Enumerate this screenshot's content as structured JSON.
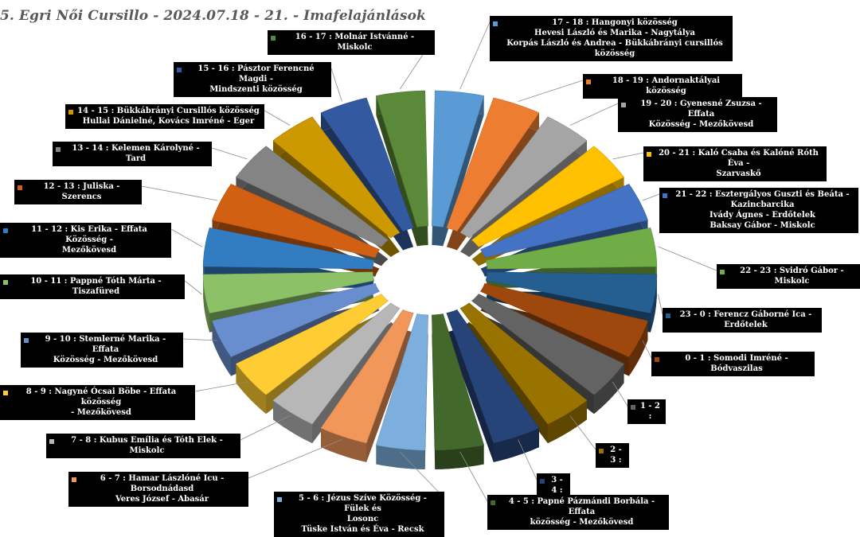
{
  "chart_data": {
    "type": "pie",
    "title": "5. Egri Női Cursillo - 2024.07.18 - 21. - Imafelajánlások",
    "categories": [
      "17 - 18 : Hangonyi közösség\nHevesi László és Marika - Nagytálya\nKorpás László és Andrea - Bükkábrányi cursillós közösség",
      "18 - 19 : Andornaktályai közösség",
      "19 - 20 : Gyenesné Zsuzsa - Effata\nKözösség - Mezőkövesd",
      "20 - 21 : Kaló Csaba és Kalóné Róth Éva -\nSzarvaskő",
      "21 - 22 : Esztergályos Guszti és Beáta -\nKazincbarcika\nIvády Ágnes - Erdőtelek\nBaksay Gábor - Miskolc",
      "22 - 23 : Svidró Gábor - Miskolc",
      "23 - 0 : Ferencz Gáborné Ica - Erdőtelek",
      "0 - 1 : Somodi Imréné - Bódvaszilas",
      "1 - 2 :",
      "2 - 3 :",
      "3 - 4 :",
      "4 - 5 : Papné Pázmándi Borbála - Effata\nközösség - Mezőkövesd",
      "5 - 6 : Jézus Szíve Közösség - Fülek és\nLosonc\nTüske István és Éva - Recsk",
      "6 - 7 : Hamar Lászlóné Icu - Borsodnádasd\nVeres József - Abasár",
      "7 - 8 : Kubus Emília és Tóth Elek - Miskolc",
      "8 - 9 : Nagyné Ócsai Böbe - Effata közösség\n- Mezőkövesd",
      "9 - 10 : Stemlerné Marika - Effata\nKözösség - Mezőkövesd",
      "10 - 11 : Pappné Tóth Márta - Tiszafüred",
      "11 - 12 : Kis Erika - Effata Közösség -\nMezőkövesd",
      "12 - 13 : Juliska - Szerencs",
      "13 - 14 : Kelemen Károlyné - Tard",
      "14 - 15 : Bükkábrányi Cursillós közösség\nHullai Dánielné, Kovács Imréné - Eger",
      "15 - 16 : Pásztor Ferencné Magdi -\nMindszenti közösség",
      "16 - 17 : Molnár Istvánné - Miskolc"
    ],
    "values": [
      1,
      1,
      1,
      1,
      1,
      1,
      1,
      1,
      1,
      1,
      1,
      1,
      1,
      1,
      1,
      1,
      1,
      1,
      1,
      1,
      1,
      1,
      1,
      1
    ],
    "colors": [
      "#5b9bd5",
      "#ed7d31",
      "#a5a5a5",
      "#ffc000",
      "#4472c4",
      "#70ad47",
      "#255e91",
      "#9e480e",
      "#636363",
      "#997300",
      "#264478",
      "#43682b",
      "#7cafdd",
      "#f1975a",
      "#b7b7b7",
      "#ffcd33",
      "#698ed0",
      "#8cc168",
      "#327dc2",
      "#d26012",
      "#848484",
      "#cc9a00",
      "#335aa1",
      "#5a8a39"
    ],
    "legend": "none",
    "grid": false
  }
}
